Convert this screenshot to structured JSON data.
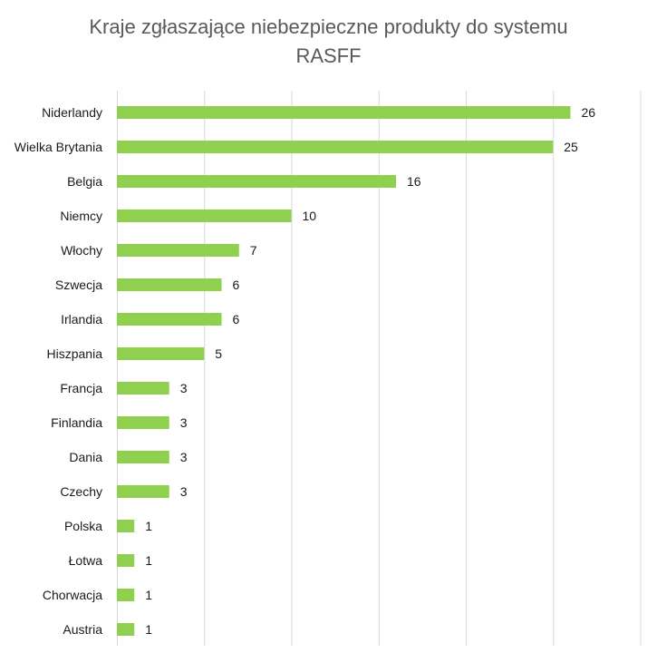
{
  "chart_data": {
    "type": "bar",
    "orientation": "horizontal",
    "title_lines": [
      "Kraje zgłaszające  niebezpieczne produkty do systemu",
      "RASFF"
    ],
    "categories": [
      "Niderlandy",
      "Wielka Brytania",
      "Belgia",
      "Niemcy",
      "Włochy",
      "Szwecja",
      "Irlandia",
      "Hiszpania",
      "Francja",
      "Finlandia",
      "Dania",
      "Czechy",
      "Polska",
      "Łotwa",
      "Chorwacja",
      "Austria"
    ],
    "values": [
      26,
      25,
      16,
      10,
      7,
      6,
      6,
      5,
      3,
      3,
      3,
      3,
      1,
      1,
      1,
      1
    ],
    "xlim": [
      0,
      30
    ],
    "grid_step": 5,
    "grid": true,
    "data_labels": true,
    "bar_color": "#8fd14f",
    "gridline_color": "#d9d9d9"
  }
}
